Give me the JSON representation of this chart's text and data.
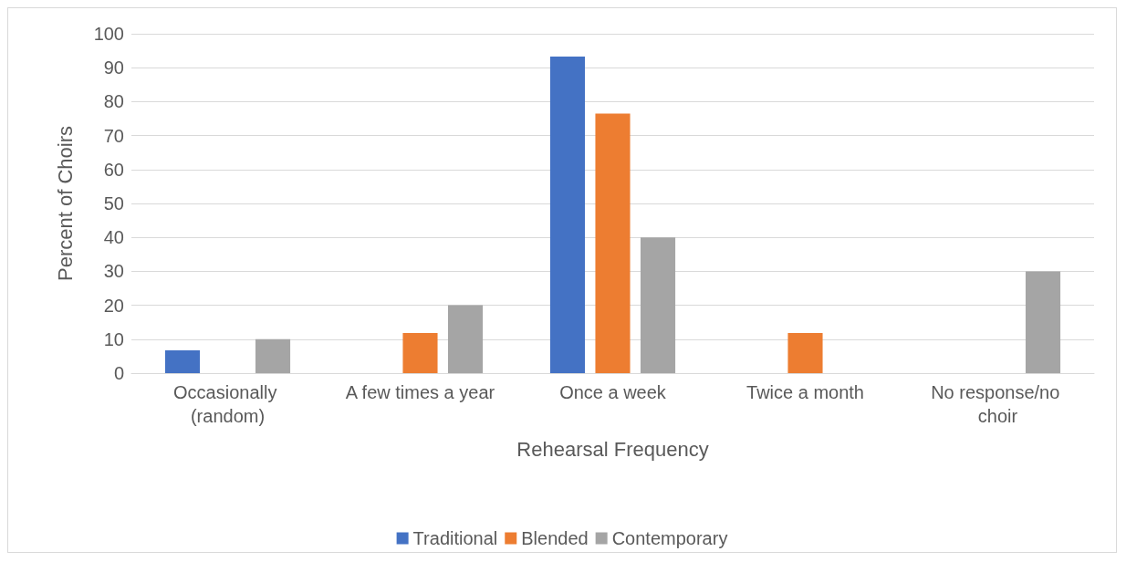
{
  "chart_data": {
    "type": "bar",
    "xlabel": "Rehearsal Frequency",
    "ylabel": "Percent of Choirs",
    "categories": [
      "Occasionally (random)",
      "A few times a year",
      "Once a week",
      "Twice a month",
      "No response/no choir"
    ],
    "series": [
      {
        "name": "Traditional",
        "color": "#4472c4",
        "values": [
          6.7,
          0,
          93.3,
          0,
          0
        ]
      },
      {
        "name": "Blended",
        "color": "#ed7d31",
        "values": [
          0,
          11.8,
          76.5,
          11.8,
          0
        ]
      },
      {
        "name": "Contemporary",
        "color": "#a5a5a5",
        "values": [
          10,
          20,
          40,
          0,
          30
        ]
      }
    ],
    "ylim": [
      0,
      100
    ],
    "yticks": [
      0,
      10,
      20,
      30,
      40,
      50,
      60,
      70,
      80,
      90,
      100
    ],
    "grid": "y",
    "legend": "bottom"
  }
}
